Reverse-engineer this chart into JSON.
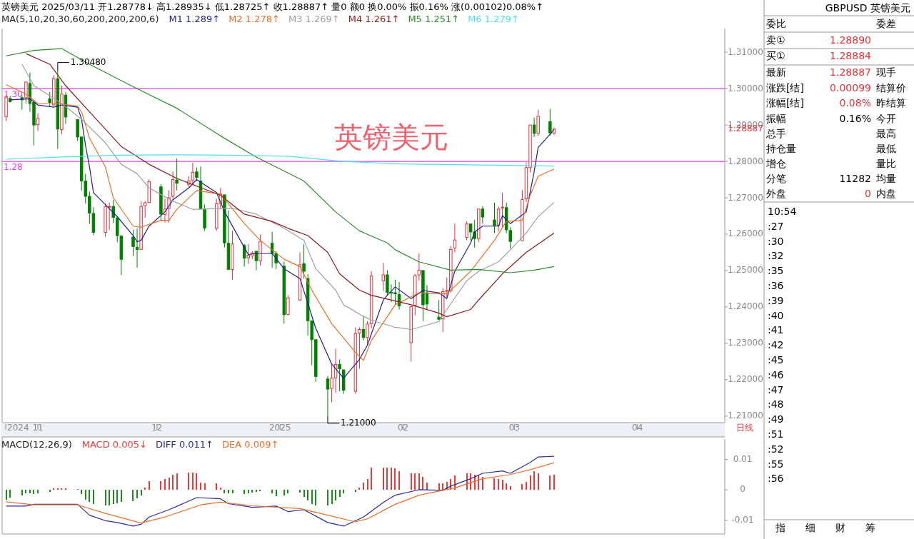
{
  "chart_data": [
    {
      "type": "candlestick",
      "title": "英镑美元 2025/03/11 开1.28778↓ 高1.28935↓ 低1.28725↑ 收1.28887↑ 量0 额0 换0.00% 振0.16% 涨(0.00102)0.08%↑",
      "subtitle": "MA(5,10,20,30,60,200,200,200,6)",
      "legend": "top left",
      "x": [
        "2024-10-24",
        "2024-10-25",
        "2024-10-28",
        "2024-10-29",
        "2024-10-30",
        "2024-10-31",
        "2024-11-01",
        "2024-11-04",
        "2024-11-05",
        "2024-11-06",
        "2024-11-07",
        "2024-11-08",
        "2024-11-11",
        "2024-11-12",
        "2024-11-13",
        "2024-11-14",
        "2024-11-15",
        "2024-11-18",
        "2024-11-19",
        "2024-11-20",
        "2024-11-21",
        "2024-11-22",
        "2024-11-25",
        "2024-11-26",
        "2024-11-27",
        "2024-11-28",
        "2024-11-29",
        "2024-12-02",
        "2024-12-03",
        "2024-12-04",
        "2024-12-05",
        "2024-12-06",
        "2024-12-09",
        "2024-12-10",
        "2024-12-11",
        "2024-12-12",
        "2024-12-13",
        "2024-12-16",
        "2024-12-17",
        "2024-12-18",
        "2024-12-19",
        "2024-12-20",
        "2024-12-23",
        "2024-12-24",
        "2024-12-25",
        "2024-12-26",
        "2024-12-27",
        "2024-12-30",
        "2024-12-31",
        "2025-01-02",
        "2025-01-03",
        "2025-01-06",
        "2025-01-07",
        "2025-01-08",
        "2025-01-09",
        "2025-01-10",
        "2025-01-13",
        "2025-01-14",
        "2025-01-15",
        "2025-01-16",
        "2025-01-17",
        "2025-01-20",
        "2025-01-21",
        "2025-01-22",
        "2025-01-23",
        "2025-01-24",
        "2025-01-27",
        "2025-01-28",
        "2025-01-29",
        "2025-01-30",
        "2025-01-31",
        "2025-02-03",
        "2025-02-04",
        "2025-02-05",
        "2025-02-06",
        "2025-02-07",
        "2025-02-10",
        "2025-02-11",
        "2025-02-12",
        "2025-02-13",
        "2025-02-14",
        "2025-02-17",
        "2025-02-18",
        "2025-02-19",
        "2025-02-20",
        "2025-02-21",
        "2025-02-24",
        "2025-02-25",
        "2025-02-26",
        "2025-02-27",
        "2025-02-28",
        "2025-03-03",
        "2025-03-04",
        "2025-03-05",
        "2025-03-06",
        "2025-03-07",
        "2025-03-10",
        "2025-03-11"
      ],
      "ohlc": [
        [
          1.2923,
          1.2982,
          1.2911,
          1.2975
        ],
        [
          1.2973,
          1.2978,
          1.2962,
          1.2964
        ],
        [
          1.2975,
          1.2982,
          1.2942,
          1.2969
        ],
        [
          1.2975,
          1.3018,
          1.2959,
          1.3018
        ],
        [
          1.3014,
          1.3044,
          1.2936,
          1.2959
        ],
        [
          1.2962,
          1.2969,
          1.2844,
          1.29
        ],
        [
          1.2901,
          1.2932,
          1.2884,
          1.2918
        ],
        [
          1.2972,
          1.2991,
          1.2949,
          1.2962
        ],
        [
          1.2955,
          1.3037,
          1.2952,
          1.3027
        ],
        [
          1.3027,
          1.3048,
          1.2834,
          1.2889
        ],
        [
          1.2887,
          1.3008,
          1.2874,
          1.2985
        ],
        [
          1.2982,
          1.299,
          1.2903,
          1.2922
        ],
        [
          1.2915,
          1.2915,
          1.2856,
          1.2867
        ],
        [
          1.2867,
          1.2867,
          1.272,
          1.2746
        ],
        [
          1.2746,
          1.2766,
          1.2684,
          1.2704
        ],
        [
          1.2704,
          1.2717,
          1.2629,
          1.2658
        ],
        [
          1.2657,
          1.2674,
          1.2597,
          1.2605
        ],
        [
          1.2605,
          1.2684,
          1.2593,
          1.2676
        ],
        [
          1.2674,
          1.2687,
          1.2612,
          1.2676
        ],
        [
          1.2676,
          1.2694,
          1.263,
          1.2646
        ],
        [
          1.2645,
          1.2645,
          1.2578,
          1.2596
        ],
        [
          1.2595,
          1.2595,
          1.2488,
          1.2531
        ],
        [
          1.2592,
          1.2612,
          1.254,
          1.2566
        ],
        [
          1.2564,
          1.2615,
          1.2508,
          1.2558
        ],
        [
          1.2558,
          1.2691,
          1.2558,
          1.2676
        ],
        [
          1.2678,
          1.2691,
          1.2645,
          1.2686
        ],
        [
          1.2687,
          1.275,
          1.2686,
          1.2744
        ],
        [
          1.273,
          1.2737,
          1.2635,
          1.2655
        ],
        [
          1.2654,
          1.2698,
          1.2632,
          1.2669
        ],
        [
          1.2671,
          1.272,
          1.2632,
          1.27
        ],
        [
          1.2704,
          1.2772,
          1.2694,
          1.275
        ],
        [
          1.2749,
          1.2808,
          1.272,
          1.274
        ],
        [
          1.2737,
          1.2759,
          1.273,
          1.2746
        ],
        [
          1.2747,
          1.2796,
          1.2734,
          1.277
        ],
        [
          1.2771,
          1.2783,
          1.2746,
          1.2756
        ],
        [
          1.2746,
          1.2786,
          1.2669,
          1.2669
        ],
        [
          1.2668,
          1.2681,
          1.2609,
          1.2617
        ],
        [
          1.2616,
          1.2697,
          1.2609,
          1.2684
        ],
        [
          1.2684,
          1.2727,
          1.2668,
          1.271
        ],
        [
          1.2708,
          1.2708,
          1.2563,
          1.2576
        ],
        [
          1.2575,
          1.2665,
          1.2503,
          1.2503
        ],
        [
          1.2503,
          1.2609,
          1.2475,
          1.2573
        ],
        [
          1.2569,
          1.2573,
          1.2511,
          1.2534
        ],
        [
          1.2535,
          1.2573,
          1.2518,
          1.2542
        ],
        [
          1.254,
          1.2553,
          1.2531,
          1.2548
        ],
        [
          1.2553,
          1.2553,
          1.2501,
          1.2527
        ],
        [
          1.2527,
          1.2599,
          1.2514,
          1.258
        ],
        [
          1.2575,
          1.2606,
          1.2508,
          1.2547
        ],
        [
          1.2547,
          1.2553,
          1.2504,
          1.2521
        ],
        [
          1.2512,
          1.2524,
          1.2354,
          1.2379
        ],
        [
          1.2379,
          1.2433,
          1.2377,
          1.2425
        ],
        [
          1.2419,
          1.255,
          1.2416,
          1.2516
        ],
        [
          1.2519,
          1.2573,
          1.2478,
          1.2498
        ],
        [
          1.2478,
          1.2491,
          1.2321,
          1.2362
        ],
        [
          1.2362,
          1.2362,
          1.224,
          1.231
        ],
        [
          1.231,
          1.231,
          1.2194,
          1.2209
        ],
        [
          1.2202,
          1.221,
          1.21,
          1.2174
        ],
        [
          1.2176,
          1.2244,
          1.2138,
          1.2204
        ],
        [
          1.2205,
          1.2285,
          1.2164,
          1.2242
        ],
        [
          1.2242,
          1.2256,
          1.2168,
          1.223
        ],
        [
          1.2227,
          1.2227,
          1.2161,
          1.2171
        ],
        [
          1.2168,
          1.2344,
          1.2161,
          1.2327
        ],
        [
          1.2328,
          1.2344,
          1.223,
          1.2338
        ],
        [
          1.2338,
          1.2375,
          1.2308,
          1.2316
        ],
        [
          1.2316,
          1.2361,
          1.2295,
          1.2353
        ],
        [
          1.2354,
          1.2498,
          1.2341,
          1.2485
        ],
        [
          1.2472,
          1.2521,
          1.2445,
          1.2488
        ],
        [
          1.2488,
          1.2501,
          1.2432,
          1.244
        ],
        [
          1.244,
          1.2462,
          1.2413,
          1.2438
        ],
        [
          1.2439,
          1.2475,
          1.2406,
          1.2436
        ],
        [
          1.2434,
          1.2468,
          1.2393,
          1.2403
        ],
        [
          1.2302,
          1.2401,
          1.225,
          1.2401
        ],
        [
          1.2405,
          1.2491,
          1.2377,
          1.2486
        ],
        [
          1.2488,
          1.2547,
          1.2472,
          1.2501
        ],
        [
          1.25,
          1.25,
          1.2361,
          1.2406
        ],
        [
          1.2439,
          1.246,
          1.2393,
          1.2408
        ],
        [
          1.2372,
          1.2419,
          1.2364,
          1.2366
        ],
        [
          1.2367,
          1.2452,
          1.2331,
          1.2442
        ],
        [
          1.2443,
          1.2481,
          1.2426,
          1.2445
        ],
        [
          1.2445,
          1.2567,
          1.2439,
          1.2558
        ],
        [
          1.2562,
          1.2629,
          1.255,
          1.2584
        ],
        [
          1.2591,
          1.2635,
          1.2583,
          1.2628
        ],
        [
          1.2628,
          1.2628,
          1.2583,
          1.2606
        ],
        [
          1.2606,
          1.2639,
          1.2563,
          1.2588
        ],
        [
          1.2588,
          1.2669,
          1.2578,
          1.2669
        ],
        [
          1.2669,
          1.2676,
          1.2629,
          1.2647
        ],
        [
          1.2639,
          1.2687,
          1.2603,
          1.2624
        ],
        [
          1.2624,
          1.2676,
          1.2608,
          1.2669
        ],
        [
          1.2672,
          1.2714,
          1.2619,
          1.2674
        ],
        [
          1.2673,
          1.2686,
          1.2603,
          1.2612
        ],
        [
          1.261,
          1.2619,
          1.256,
          1.258
        ],
        [
          1.2582,
          1.2721,
          1.2582,
          1.2695
        ],
        [
          1.2697,
          1.2797,
          1.2688,
          1.2783
        ],
        [
          1.2783,
          1.29,
          1.2769,
          1.29
        ],
        [
          1.29,
          1.2921,
          1.2867,
          1.2877
        ],
        [
          1.2877,
          1.2942,
          1.2869,
          1.2924
        ],
        [
          1.2909,
          1.2944,
          1.2871,
          1.2878
        ],
        [
          1.28778,
          1.28935,
          1.28725,
          1.28887
        ]
      ],
      "xlim": [
        "2024-10-23",
        "2025-04-23"
      ],
      "xticks": [
        {
          "value": "2024-11-01",
          "label": "11"
        },
        {
          "value": "2024-12-01",
          "label": "12"
        },
        {
          "value": "2025-01-01",
          "label": "2025"
        },
        {
          "value": "2025-02-01",
          "label": "02"
        },
        {
          "value": "2025-03-01",
          "label": "03"
        },
        {
          "value": "2025-04-01",
          "label": "04"
        }
      ],
      "ylim": [
        1.2082,
        1.3165
      ],
      "yticks": [
        {
          "value": 1.21,
          "label": "1.21000"
        },
        {
          "value": 1.22,
          "label": "1.22000"
        },
        {
          "value": 1.23,
          "label": "1.23000"
        },
        {
          "value": 1.24,
          "label": "1.24000"
        },
        {
          "value": 1.25,
          "label": "1.25000"
        },
        {
          "value": 1.26,
          "label": "1.26000"
        },
        {
          "value": 1.27,
          "label": "1.27000"
        },
        {
          "value": 1.28,
          "label": "1.28000"
        },
        {
          "value": 1.29,
          "label": "1.29000"
        },
        {
          "value": 1.3,
          "label": "1.30000"
        },
        {
          "value": 1.31,
          "label": "1.31000"
        }
      ],
      "series": [
        {
          "name": "M1 1.289↑",
          "type": "line",
          "color": "#1f1f8f",
          "x": [
            "2024-10-25",
            "2024-10-30",
            "2024-11-01",
            "2024-11-05",
            "2024-11-07",
            "2024-11-11",
            "2024-11-12",
            "2024-11-13",
            "2024-11-14",
            "2024-11-15",
            "2024-11-18",
            "2024-11-21",
            "2024-11-25",
            "2024-11-26",
            "2024-11-27",
            "2024-11-29",
            "2024-12-03",
            "2024-12-05",
            "2024-12-09",
            "2024-12-11",
            "2024-12-16",
            "2024-12-18",
            "2024-12-23",
            "2024-12-24",
            "2024-12-26",
            "2024-12-30",
            "2025-01-02",
            "2025-01-06",
            "2025-01-10",
            "2025-01-14",
            "2025-01-17",
            "2025-01-21",
            "2025-01-23",
            "2025-01-27",
            "2025-01-28",
            "2025-01-30",
            "2025-02-03",
            "2025-02-06",
            "2025-02-10",
            "2025-02-12",
            "2025-02-14",
            "2025-02-18",
            "2025-02-19",
            "2025-02-21",
            "2025-02-25",
            "2025-02-26",
            "2025-02-28",
            "2025-03-04",
            "2025-03-06",
            "2025-03-07",
            "2025-03-11"
          ],
          "values": [
            1.2969,
            1.2972,
            1.2955,
            1.2949,
            1.2955,
            1.2949,
            1.2916,
            1.2844,
            1.2785,
            1.2714,
            1.2681,
            1.2648,
            1.2596,
            1.2579,
            1.2583,
            1.2622,
            1.2661,
            1.2694,
            1.2727,
            1.275,
            1.2714,
            1.2662,
            1.2563,
            1.2544,
            1.2547,
            1.2547,
            1.2505,
            1.2478,
            1.2341,
            1.2243,
            1.2204,
            1.2256,
            1.2295,
            1.2419,
            1.2432,
            1.2455,
            1.2423,
            1.2445,
            1.2439,
            1.2423,
            1.2498,
            1.2576,
            1.2606,
            1.2622,
            1.2622,
            1.2651,
            1.2629,
            1.2661,
            1.2772,
            1.2838,
            1.2887
          ]
        },
        {
          "name": "M2 1.278↑",
          "type": "line",
          "color": "#e8702a",
          "x": [
            "2024-10-24",
            "2024-10-29",
            "2024-11-01",
            "2024-11-06",
            "2024-11-11",
            "2024-11-12",
            "2024-11-14",
            "2024-11-18",
            "2024-11-20",
            "2024-11-25",
            "2024-11-27",
            "2024-12-02",
            "2024-12-04",
            "2024-12-06",
            "2024-12-11",
            "2024-12-17",
            "2024-12-23",
            "2024-12-27",
            "2025-01-02",
            "2025-01-06",
            "2025-01-09",
            "2025-01-14",
            "2025-01-20",
            "2025-01-22",
            "2025-01-24",
            "2025-01-30",
            "2025-02-05",
            "2025-02-10",
            "2025-02-12",
            "2025-02-18",
            "2025-02-24",
            "2025-02-27",
            "2025-03-03",
            "2025-03-05",
            "2025-03-07",
            "2025-03-11"
          ],
          "values": [
            1.3011,
            1.2985,
            1.2959,
            1.2959,
            1.2952,
            1.2936,
            1.2864,
            1.2785,
            1.27,
            1.2622,
            1.2619,
            1.2638,
            1.2638,
            1.2668,
            1.272,
            1.271,
            1.2629,
            1.2583,
            1.2531,
            1.2511,
            1.2446,
            1.2354,
            1.2275,
            1.2253,
            1.2308,
            1.2406,
            1.2439,
            1.2436,
            1.2436,
            1.2498,
            1.2583,
            1.2635,
            1.2638,
            1.2707,
            1.2759,
            1.2779
          ]
        },
        {
          "name": "M3 1.269↑",
          "type": "line",
          "color": "#a0a0a0",
          "x": [
            "2024-10-28",
            "2024-10-31",
            "2024-11-07",
            "2024-11-12",
            "2024-11-18",
            "2024-11-22",
            "2024-11-26",
            "2024-11-29",
            "2024-12-05",
            "2024-12-10",
            "2024-12-16",
            "2024-12-20",
            "2024-12-26",
            "2025-01-02",
            "2025-01-07",
            "2025-01-10",
            "2025-01-15",
            "2025-01-17",
            "2025-01-22",
            "2025-01-24",
            "2025-01-30",
            "2025-02-03",
            "2025-02-05",
            "2025-02-10",
            "2025-02-12",
            "2025-02-17",
            "2025-02-20",
            "2025-02-25",
            "2025-02-28",
            "2025-03-04",
            "2025-03-07",
            "2025-03-11"
          ],
          "values": [
            1.3067,
            1.3008,
            1.2959,
            1.2916,
            1.2851,
            1.2792,
            1.2766,
            1.2727,
            1.2691,
            1.2668,
            1.2671,
            1.2671,
            1.2655,
            1.2616,
            1.2583,
            1.2505,
            1.2446,
            1.2406,
            1.2374,
            1.2364,
            1.2344,
            1.2338,
            1.2344,
            1.236,
            1.2393,
            1.2472,
            1.2498,
            1.2524,
            1.2557,
            1.2603,
            1.2648,
            1.2687
          ]
        },
        {
          "name": "M4 1.261↑",
          "type": "line",
          "color": "#8b1a1a",
          "x": [
            "2024-10-29",
            "2024-11-04",
            "2024-11-08",
            "2024-11-14",
            "2024-11-22",
            "2024-11-29",
            "2024-12-06",
            "2024-12-17",
            "2024-12-23",
            "2024-12-30",
            "2025-01-03",
            "2025-01-08",
            "2025-01-13",
            "2025-01-16",
            "2025-01-21",
            "2025-01-24",
            "2025-02-03",
            "2025-02-10",
            "2025-02-12",
            "2025-02-18",
            "2025-02-20",
            "2025-02-26",
            "2025-03-04",
            "2025-03-11"
          ],
          "values": [
            1.3096,
            1.3067,
            1.3008,
            1.2936,
            1.2841,
            1.2792,
            1.2753,
            1.2707,
            1.2655,
            1.2635,
            1.2616,
            1.2596,
            1.255,
            1.2491,
            1.2446,
            1.2432,
            1.2406,
            1.2383,
            1.2373,
            1.2393,
            1.2419,
            1.2491,
            1.255,
            1.2603
          ]
        },
        {
          "name": "M5 1.251↑",
          "type": "line",
          "color": "#2e8b2e",
          "x": [
            "2024-10-24",
            "2024-10-31",
            "2024-11-07",
            "2024-11-14",
            "2024-11-25",
            "2024-12-06",
            "2024-12-17",
            "2024-12-26",
            "2025-01-07",
            "2025-01-15",
            "2025-01-21",
            "2025-01-28",
            "2025-01-30",
            "2025-02-05",
            "2025-02-13",
            "2025-02-20",
            "2025-02-28",
            "2025-03-06",
            "2025-03-11"
          ],
          "values": [
            1.309,
            1.3105,
            1.311,
            1.3067,
            1.3005,
            1.2946,
            1.287,
            1.2812,
            1.2746,
            1.2661,
            1.2609,
            1.2576,
            1.2557,
            1.2524,
            1.2501,
            1.2503,
            1.2494,
            1.2501,
            1.2511
          ]
        },
        {
          "name": "M6 1.279↑",
          "type": "line",
          "color": "#4fe0f0",
          "x": [
            "2024-10-24",
            "2024-11-07",
            "2024-11-21",
            "2024-12-05",
            "2024-12-19",
            "2025-01-03",
            "2025-01-17",
            "2025-01-31",
            "2025-02-14",
            "2025-02-28",
            "2025-03-11"
          ],
          "values": [
            1.2806,
            1.2812,
            1.2817,
            1.2818,
            1.2817,
            1.2814,
            1.28,
            1.2793,
            1.2791,
            1.2789,
            1.2787
          ]
        }
      ],
      "ref_lines": [
        {
          "axis": "y",
          "value": 1.3,
          "label": "1.30",
          "color": "#e040e0"
        },
        {
          "axis": "y",
          "value": 1.28,
          "label": "1.28",
          "color": "#e040e0"
        }
      ],
      "annotations": [
        "1.30480",
        "1.21000",
        "英镑美元",
        "1.28887",
        "日线",
        "2024"
      ]
    },
    {
      "type": "bar",
      "title": "MACD(12,26,9)",
      "legend": "top left",
      "tick_labels": "y",
      "xlim": [
        "2024-10-23",
        "2025-04-23"
      ],
      "ylim": [
        -0.0146,
        0.0167
      ],
      "yticks": [
        -0.01,
        0,
        0.01
      ],
      "x": [
        "2024-10-24",
        "2024-10-25",
        "2024-10-28",
        "2024-10-29",
        "2024-10-30",
        "2024-10-31",
        "2024-11-01",
        "2024-11-04",
        "2024-11-05",
        "2024-11-06",
        "2024-11-07",
        "2024-11-08",
        "2024-11-11",
        "2024-11-12",
        "2024-11-13",
        "2024-11-14",
        "2024-11-15",
        "2024-11-18",
        "2024-11-19",
        "2024-11-20",
        "2024-11-21",
        "2024-11-22",
        "2024-11-25",
        "2024-11-26",
        "2024-11-27",
        "2024-11-28",
        "2024-11-29",
        "2024-12-02",
        "2024-12-03",
        "2024-12-04",
        "2024-12-05",
        "2024-12-06",
        "2024-12-09",
        "2024-12-10",
        "2024-12-11",
        "2024-12-12",
        "2024-12-13",
        "2024-12-16",
        "2024-12-17",
        "2024-12-18",
        "2024-12-19",
        "2024-12-20",
        "2024-12-23",
        "2024-12-24",
        "2024-12-25",
        "2024-12-26",
        "2024-12-27",
        "2024-12-30",
        "2024-12-31",
        "2025-01-02",
        "2025-01-03",
        "2025-01-06",
        "2025-01-07",
        "2025-01-08",
        "2025-01-09",
        "2025-01-10",
        "2025-01-13",
        "2025-01-14",
        "2025-01-15",
        "2025-01-16",
        "2025-01-17",
        "2025-01-20",
        "2025-01-21",
        "2025-01-22",
        "2025-01-23",
        "2025-01-24",
        "2025-01-27",
        "2025-01-28",
        "2025-01-29",
        "2025-01-30",
        "2025-01-31",
        "2025-02-03",
        "2025-02-04",
        "2025-02-05",
        "2025-02-06",
        "2025-02-07",
        "2025-02-10",
        "2025-02-11",
        "2025-02-12",
        "2025-02-13",
        "2025-02-14",
        "2025-02-17",
        "2025-02-18",
        "2025-02-19",
        "2025-02-20",
        "2025-02-21",
        "2025-02-24",
        "2025-02-25",
        "2025-02-26",
        "2025-02-27",
        "2025-02-28",
        "2025-03-03",
        "2025-03-04",
        "2025-03-05",
        "2025-03-06",
        "2025-03-07",
        "2025-03-10",
        "2025-03-11"
      ],
      "series": [
        {
          "name": "MACD 0.005↓",
          "type": "bar",
          "values": [
            -0.0033,
            -0.0026,
            -0.0018,
            -0.0012,
            -0.0012,
            -0.0014,
            -0.0012,
            -0.0008,
            0.0005,
            0.0005,
            0.0004,
            0.0004,
            0.0003,
            -0.0014,
            -0.0033,
            -0.0041,
            -0.0047,
            -0.0051,
            -0.0051,
            -0.0047,
            -0.0044,
            -0.0041,
            -0.0038,
            -0.0029,
            -0.0018,
            0.0006,
            0.0029,
            0.0029,
            0.0035,
            0.0041,
            0.0049,
            0.0053,
            0.0056,
            0.0056,
            0.0053,
            0.0024,
            0.0021,
            0.0021,
            0.0006,
            -0.0012,
            -0.0012,
            -0.0012,
            -0.0014,
            -0.0012,
            -0.0009,
            -0.0006,
            -0.0004,
            -0.0012,
            -0.0021,
            -0.0018,
            -0.0012,
            -0.0009,
            -0.0024,
            -0.0035,
            -0.0047,
            -0.0053,
            -0.0053,
            -0.0047,
            -0.0035,
            -0.0024,
            -0.0012,
            -0.0006,
            0.0006,
            0.0024,
            0.0036,
            0.0072,
            0.0074,
            0.0074,
            0.0072,
            0.007,
            0.0062,
            0.0054,
            0.0054,
            0.0054,
            0.0042,
            0.0024,
            0.0022,
            0.0022,
            0.0026,
            0.0036,
            0.0046,
            0.0054,
            0.0054,
            0.005,
            0.0048,
            0.0042,
            0.0038,
            0.0036,
            0.0032,
            0.0022,
            0.0012,
            0.0018,
            0.0026,
            0.0048,
            0.006,
            0.0054,
            0.0048,
            0.005
          ],
          "colors": [
            "#1a8c1a",
            "#1a8c1a",
            "#1a8c1a",
            "#1a8c1a",
            "#1a8c1a",
            "#1a8c1a",
            "#1a8c1a",
            "#1a8c1a",
            "#e83a3a",
            "#e83a3a",
            "#e83a3a",
            "#e83a3a",
            "#e83a3a",
            "#1a8c1a",
            "#1a8c1a",
            "#1a8c1a",
            "#1a8c1a",
            "#1a8c1a",
            "#1a8c1a",
            "#1a8c1a",
            "#1a8c1a",
            "#1a8c1a",
            "#1a8c1a",
            "#1a8c1a",
            "#1a8c1a",
            "#e83a3a",
            "#e83a3a",
            "#e83a3a",
            "#e83a3a",
            "#e83a3a",
            "#e83a3a",
            "#e83a3a",
            "#e83a3a",
            "#e83a3a",
            "#e83a3a",
            "#e83a3a",
            "#e83a3a",
            "#e83a3a",
            "#e83a3a",
            "#1a8c1a",
            "#1a8c1a",
            "#1a8c1a",
            "#1a8c1a",
            "#1a8c1a",
            "#1a8c1a",
            "#1a8c1a",
            "#1a8c1a",
            "#1a8c1a",
            "#1a8c1a",
            "#1a8c1a",
            "#1a8c1a",
            "#1a8c1a",
            "#1a8c1a",
            "#1a8c1a",
            "#1a8c1a",
            "#1a8c1a",
            "#1a8c1a",
            "#1a8c1a",
            "#1a8c1a",
            "#1a8c1a",
            "#1a8c1a",
            "#1a8c1a",
            "#e83a3a",
            "#e83a3a",
            "#e83a3a",
            "#e83a3a",
            "#e83a3a",
            "#e83a3a",
            "#e83a3a",
            "#e83a3a",
            "#e83a3a",
            "#e83a3a",
            "#e83a3a",
            "#e83a3a",
            "#e83a3a",
            "#e83a3a",
            "#e83a3a",
            "#e83a3a",
            "#e83a3a",
            "#e83a3a",
            "#e83a3a",
            "#e83a3a",
            "#e83a3a",
            "#e83a3a",
            "#e83a3a",
            "#e83a3a",
            "#e83a3a",
            "#e83a3a",
            "#e83a3a",
            "#e83a3a",
            "#e83a3a",
            "#e83a3a",
            "#e83a3a",
            "#e83a3a",
            "#e83a3a",
            "#e83a3a",
            "#e83a3a",
            "#e83a3a"
          ]
        },
        {
          "name": "DIFF 0.011↑",
          "type": "line",
          "color": "#2b2b9b",
          "x": [
            "2024-10-24",
            "2024-10-29",
            "2024-10-31",
            "2024-11-06",
            "2024-11-11",
            "2024-11-14",
            "2024-11-18",
            "2024-11-21",
            "2024-11-25",
            "2024-11-27",
            "2024-11-29",
            "2024-12-04",
            "2024-12-11",
            "2024-12-17",
            "2024-12-19",
            "2024-12-25",
            "2024-12-31",
            "2025-01-03",
            "2025-01-07",
            "2025-01-13",
            "2025-01-17",
            "2025-01-22",
            "2025-01-27",
            "2025-01-30",
            "2025-02-05",
            "2025-02-11",
            "2025-02-13",
            "2025-02-18",
            "2025-02-21",
            "2025-02-26",
            "2025-02-28",
            "2025-03-05",
            "2025-03-07",
            "2025-03-11"
          ],
          "values": [
            -0.0054,
            -0.0054,
            -0.0048,
            -0.0048,
            -0.0048,
            -0.0084,
            -0.0102,
            -0.0108,
            -0.012,
            -0.0114,
            -0.009,
            -0.0066,
            -0.0026,
            -0.003,
            -0.0046,
            -0.0058,
            -0.0054,
            -0.0072,
            -0.0066,
            -0.0108,
            -0.012,
            -0.009,
            -0.0042,
            -0.0018,
            0,
            -0.0002,
            0.0012,
            0.0036,
            0.0054,
            0.0062,
            0.0054,
            0.009,
            0.0108,
            0.011
          ]
        },
        {
          "name": "DEA 0.009↑",
          "type": "line",
          "color": "#e8702a",
          "x": [
            "2024-10-24",
            "2024-10-31",
            "2024-11-11",
            "2024-11-18",
            "2024-11-27",
            "2024-12-03",
            "2024-12-12",
            "2024-12-17",
            "2024-12-25",
            "2025-01-06",
            "2025-01-13",
            "2025-01-20",
            "2025-01-23",
            "2025-01-30",
            "2025-02-05",
            "2025-02-14",
            "2025-02-21",
            "2025-02-28",
            "2025-03-05",
            "2025-03-11"
          ],
          "values": [
            -0.004,
            -0.005,
            -0.005,
            -0.0078,
            -0.011,
            -0.009,
            -0.005,
            -0.0041,
            -0.0053,
            -0.0062,
            -0.0084,
            -0.0106,
            -0.0096,
            -0.0048,
            -0.0018,
            0.0006,
            0.0036,
            0.005,
            0.0066,
            0.0089
          ]
        }
      ]
    },
    {
      "type": "other",
      "annotations": [
        "GBPUSD 英镑美元",
        "委比",
        "委差",
        "卖①",
        "1.28890",
        "买①",
        "1.28884",
        "最新",
        "1.28887",
        "现手",
        "涨跌[结]",
        "0.00099",
        "结算价",
        "涨幅[结]",
        "0.08%",
        "昨结算",
        "振幅",
        "0.16%",
        "今开",
        "总手",
        "最高",
        "持仓量",
        "最低",
        "增仓",
        "量比",
        "分笔",
        "11282",
        "均量",
        "外盘",
        "0",
        "内盘",
        "10:54",
        ":27",
        ":30",
        ":32",
        ":35",
        ":36",
        ":39",
        ":40",
        ":41",
        ":42",
        ":45",
        ":46",
        ":47",
        ":48",
        ":49",
        ":51",
        ":52",
        ":55",
        ":56",
        "指",
        "细",
        "财",
        "筹"
      ]
    }
  ]
}
